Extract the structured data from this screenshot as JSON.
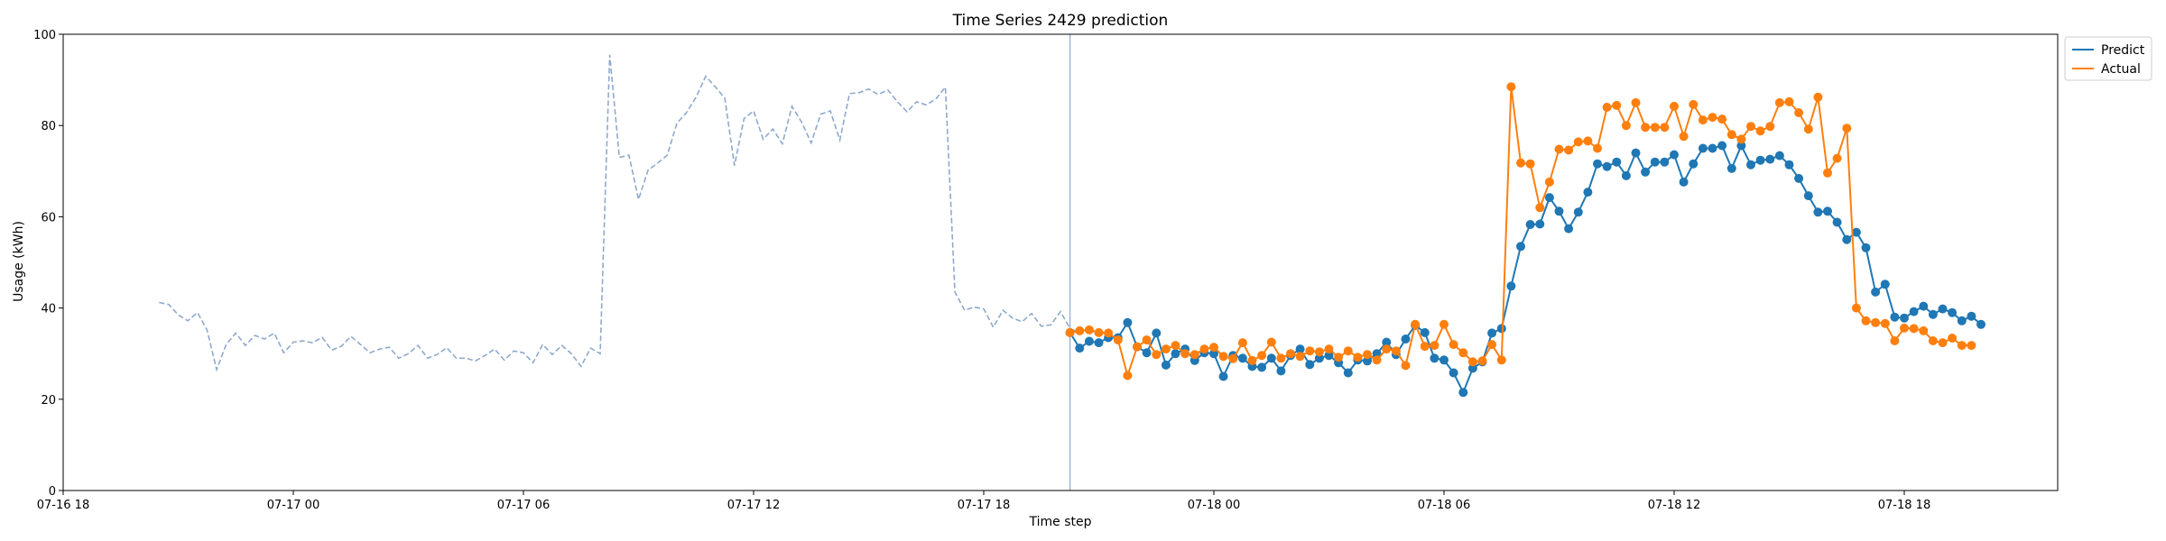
{
  "chart_data": {
    "type": "line",
    "title": "Time Series 2429 prediction",
    "xlabel": "Time step",
    "ylabel": "Usage (kWh)",
    "ylim": [
      0,
      100
    ],
    "xlim": [
      "07-16 18:00",
      "07-18 22:00"
    ],
    "yticks": [
      "0",
      "20",
      "40",
      "60",
      "80",
      "100"
    ],
    "xticks": [
      {
        "at": "07-16 18:00",
        "label": "07-16 18"
      },
      {
        "at": "07-17 00:00",
        "label": "07-17 00"
      },
      {
        "at": "07-17 06:00",
        "label": "07-17 06"
      },
      {
        "at": "07-17 12:00",
        "label": "07-17 12"
      },
      {
        "at": "07-17 18:00",
        "label": "07-17 18"
      },
      {
        "at": "07-18 00:00",
        "label": "07-18 00"
      },
      {
        "at": "07-18 06:00",
        "label": "07-18 06"
      },
      {
        "at": "07-18 12:00",
        "label": "07-18 12"
      },
      {
        "at": "07-18 18:00",
        "label": "07-18 18"
      }
    ],
    "grid": false,
    "legend": "top-right",
    "prediction_start": "07-17 20:15",
    "colors": {
      "history": "#8fa9cc",
      "predict": "#1f77b4",
      "actual": "#ff7f0e",
      "divider": "#8fa9cc"
    },
    "series": [
      {
        "key": "history",
        "start": "07-16 20:30",
        "step_minutes": 15,
        "values": [
          41.2,
          40.8,
          38.5,
          37.2,
          39.0,
          35.2,
          26.5,
          32.0,
          34.5,
          31.8,
          34.0,
          33.2,
          34.5,
          30.2,
          32.5,
          32.8,
          32.4,
          33.6,
          30.8,
          31.6,
          33.8,
          32.0,
          30.2,
          31.0,
          31.4,
          29.0,
          30.0,
          31.8,
          29.0,
          29.8,
          31.3,
          29.0,
          29.0,
          28.4,
          29.6,
          31.0,
          28.6,
          30.6,
          30.2,
          28.0,
          32.0,
          29.8,
          31.8,
          30.0,
          27.2,
          31.2,
          30.0,
          95.5,
          73.0,
          73.5,
          63.8,
          70.2,
          71.8,
          73.5,
          80.5,
          82.8,
          86.2,
          90.8,
          88.5,
          86.0,
          71.2,
          81.5,
          83.2,
          77.0,
          79.2,
          76.0,
          84.2,
          80.8,
          76.2,
          82.5,
          83.2,
          76.8,
          87.0,
          87.2,
          88.0,
          86.8,
          87.8,
          85.2,
          83.0,
          85.2,
          84.5,
          85.8,
          88.4,
          43.5,
          39.5,
          40.2,
          39.8,
          35.8,
          39.5,
          37.8,
          37.0,
          38.8,
          36.0,
          36.3,
          39.2,
          35.5,
          34.6
        ]
      },
      {
        "key": "predict",
        "name": "Predict",
        "start": "07-17 20:15",
        "step_minutes": 15,
        "values": [
          34.6,
          31.2,
          32.7,
          32.4,
          33.5,
          33.5,
          36.8,
          31.5,
          30.2,
          34.5,
          27.5,
          30.0,
          31.0,
          28.5,
          30.2,
          30.0,
          25.0,
          29.6,
          29.0,
          27.2,
          27.0,
          29.0,
          26.2,
          29.6,
          31.0,
          27.6,
          29.0,
          29.6,
          28.0,
          25.8,
          28.6,
          28.4,
          30.0,
          32.5,
          29.8,
          33.2,
          36.2,
          34.6,
          29.0,
          28.6,
          25.8,
          21.5,
          26.8,
          28.2,
          34.5,
          35.5,
          44.8,
          53.5,
          58.3,
          58.4,
          64.2,
          61.2,
          57.4,
          61.0,
          65.4,
          71.6,
          71.0,
          72.0,
          69.0,
          74.0,
          69.8,
          72.0,
          72.0,
          73.6,
          67.6,
          71.6,
          75.0,
          75.0,
          75.6,
          70.6,
          75.6,
          71.4,
          72.4,
          72.6,
          73.4,
          71.4,
          68.4,
          64.6,
          61.0,
          61.2,
          58.8,
          55.0,
          56.6,
          53.2,
          43.5,
          45.2,
          38.0,
          37.8,
          39.2,
          40.4,
          38.6,
          39.8,
          39.0,
          37.2,
          38.2,
          36.4
        ]
      },
      {
        "key": "actual",
        "name": "Actual",
        "start": "07-17 20:15",
        "step_minutes": 15,
        "values": [
          34.6,
          35.0,
          35.2,
          34.6,
          34.5,
          33.0,
          25.2,
          31.5,
          33.0,
          29.8,
          31.0,
          31.8,
          30.0,
          29.8,
          31.0,
          31.4,
          29.4,
          28.9,
          32.4,
          28.5,
          29.6,
          32.5,
          29.0,
          30.0,
          29.4,
          30.6,
          30.4,
          31.0,
          29.2,
          30.6,
          29.2,
          29.8,
          28.6,
          31.0,
          30.6,
          27.4,
          36.4,
          31.6,
          31.8,
          36.4,
          32.0,
          30.2,
          28.2,
          28.4,
          32.0,
          28.6,
          88.5,
          71.8,
          71.6,
          62.0,
          67.6,
          74.8,
          74.6,
          76.4,
          76.6,
          75.0,
          84.0,
          84.4,
          80.0,
          85.0,
          79.6,
          79.6,
          79.6,
          84.2,
          77.6,
          84.6,
          81.2,
          81.8,
          81.4,
          78.0,
          77.0,
          79.8,
          78.8,
          79.8,
          85.0,
          85.2,
          82.8,
          79.2,
          86.2,
          69.6,
          72.8,
          79.4,
          40.0,
          37.2,
          36.8,
          36.6,
          32.8,
          35.6,
          35.5,
          35.0,
          32.8,
          32.4,
          33.4,
          31.8,
          31.8
        ]
      }
    ]
  }
}
